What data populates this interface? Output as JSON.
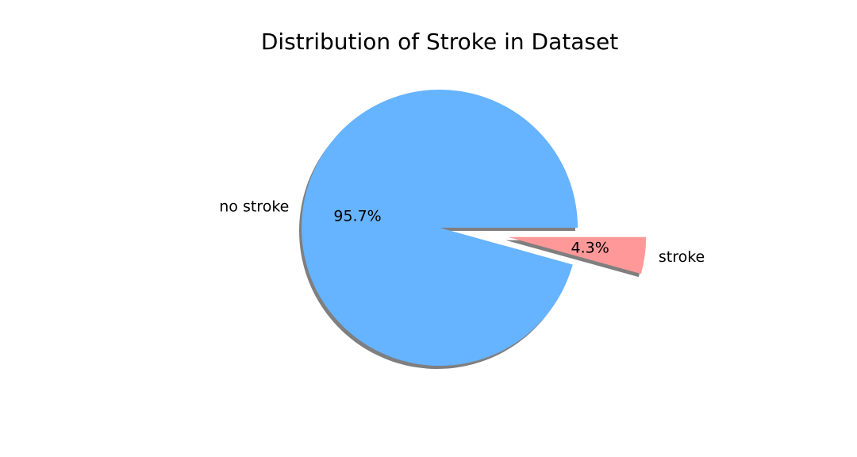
{
  "chart_data": {
    "type": "pie",
    "title": "Distribution of Stroke in Dataset",
    "categories": [
      "no stroke",
      "stroke"
    ],
    "values": [
      95.7,
      4.3
    ],
    "value_labels": [
      "95.7%",
      "4.3%"
    ],
    "colors": [
      "#66b3ff",
      "#ff9999"
    ],
    "explode": [
      0,
      0.5
    ],
    "shadow": true,
    "start_angle_deg": 0,
    "direction": "counterclockwise"
  }
}
